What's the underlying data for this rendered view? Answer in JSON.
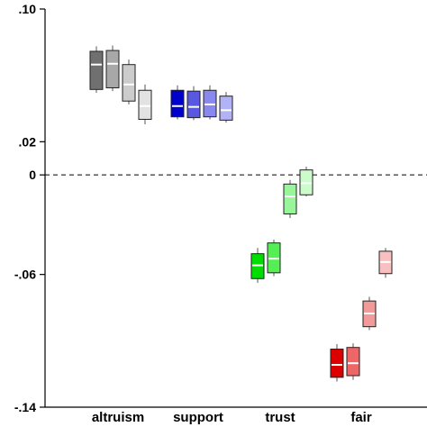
{
  "chart_data": {
    "type": "box",
    "title": "",
    "xlabel": "",
    "ylabel": "",
    "ylim": [
      -0.14,
      0.1
    ],
    "y_ticks": [
      {
        "value": 0.1,
        "label": ".10"
      },
      {
        "value": 0.02,
        "label": ".02"
      },
      {
        "value": 0.0,
        "label": "0"
      },
      {
        "value": -0.06,
        "label": "-.06"
      },
      {
        "value": -0.14,
        "label": "-.14"
      }
    ],
    "reference_line": {
      "value": 0.0,
      "style": "dashed"
    },
    "grid": false,
    "categories": [
      "altruism",
      "support",
      "trust",
      "fair"
    ],
    "groups": [
      {
        "category": "altruism",
        "boxes": [
          {
            "whisker_high": 0.0775,
            "q3": 0.0745,
            "median": 0.0665,
            "q1": 0.0515,
            "whisker_low": 0.0495,
            "fill": "#707070"
          },
          {
            "whisker_high": 0.078,
            "q3": 0.075,
            "median": 0.067,
            "q1": 0.0525,
            "whisker_low": 0.0505,
            "fill": "#a8a8a8"
          },
          {
            "whisker_high": 0.0695,
            "q3": 0.0665,
            "median": 0.0545,
            "q1": 0.0445,
            "whisker_low": 0.0425,
            "fill": "#cccccc"
          },
          {
            "whisker_high": 0.0545,
            "q3": 0.051,
            "median": 0.0415,
            "q1": 0.0335,
            "whisker_low": 0.0305,
            "fill": "#e2e2e2"
          }
        ]
      },
      {
        "category": "support",
        "boxes": [
          {
            "whisker_high": 0.054,
            "q3": 0.051,
            "median": 0.0415,
            "q1": 0.035,
            "whisker_low": 0.0335,
            "fill": "#0000cc"
          },
          {
            "whisker_high": 0.0535,
            "q3": 0.0505,
            "median": 0.041,
            "q1": 0.0345,
            "whisker_low": 0.033,
            "fill": "#5858e0"
          },
          {
            "whisker_high": 0.054,
            "q3": 0.051,
            "median": 0.0425,
            "q1": 0.035,
            "whisker_low": 0.0335,
            "fill": "#8888ee"
          },
          {
            "whisker_high": 0.05,
            "q3": 0.0475,
            "median": 0.039,
            "q1": 0.033,
            "whisker_low": 0.0315,
            "fill": "#b2b2f6"
          }
        ]
      },
      {
        "category": "trust",
        "boxes": [
          {
            "whisker_high": -0.044,
            "q3": -0.0475,
            "median": -0.0545,
            "q1": -0.0625,
            "whisker_low": -0.065,
            "fill": "#00dd00"
          },
          {
            "whisker_high": -0.039,
            "q3": -0.041,
            "median": -0.0505,
            "q1": -0.059,
            "whisker_low": -0.061,
            "fill": "#55ee55"
          },
          {
            "whisker_high": -0.003,
            "q3": -0.0055,
            "median": -0.013,
            "q1": -0.0235,
            "whisker_low": -0.026,
            "fill": "#99f599"
          },
          {
            "whisker_high": 0.005,
            "q3": 0.003,
            "median": -0.005,
            "q1": -0.012,
            "whisker_low": -0.013,
            "fill": "#ccfccc"
          }
        ]
      },
      {
        "category": "fair",
        "boxes": [
          {
            "whisker_high": -0.102,
            "q3": -0.105,
            "median": -0.1145,
            "q1": -0.122,
            "whisker_low": -0.1245,
            "fill": "#dd0000"
          },
          {
            "whisker_high": -0.1015,
            "q3": -0.104,
            "median": -0.1135,
            "q1": -0.121,
            "whisker_low": -0.1235,
            "fill": "#ee6666"
          },
          {
            "whisker_high": -0.0735,
            "q3": -0.076,
            "median": -0.0835,
            "q1": -0.0915,
            "whisker_low": -0.0935,
            "fill": "#f29a9a"
          },
          {
            "whisker_high": -0.044,
            "q3": -0.046,
            "median": -0.0525,
            "q1": -0.0595,
            "whisker_low": -0.062,
            "fill": "#f8c0c0"
          }
        ]
      }
    ]
  }
}
